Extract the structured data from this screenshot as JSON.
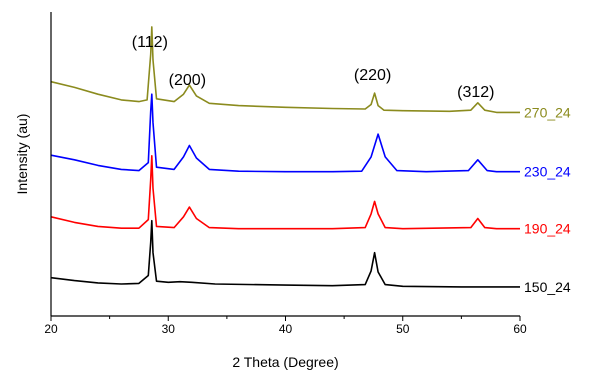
{
  "chart_data": {
    "type": "line",
    "xlabel": "2 Theta (Degree)",
    "ylabel": "Intensity (au)",
    "xlim": [
      20,
      60
    ],
    "xticks": [
      20,
      30,
      40,
      50,
      60
    ],
    "yticks_shown": false,
    "grid": false,
    "legend": "labels at right end of each trace",
    "stacked_offset": true,
    "peak_annotations": [
      {
        "label": "(112)",
        "x": 28.6
      },
      {
        "label": "(200)",
        "x": 31.8
      },
      {
        "label": "(220)",
        "x": 47.6
      },
      {
        "label": "(312)",
        "x": 56.4
      }
    ],
    "series": [
      {
        "name": "270_24",
        "color": "#8b8b1e",
        "baseline": 3.0,
        "x": [
          20,
          22,
          24,
          26,
          27.5,
          28.2,
          28.5,
          28.6,
          28.7,
          29.0,
          30.5,
          31.3,
          31.8,
          32.4,
          33.5,
          36,
          40,
          44,
          46.8,
          47.3,
          47.6,
          47.9,
          48.4,
          50,
          54,
          55.8,
          56.4,
          57.0,
          58,
          60
        ],
        "y": [
          3.62,
          3.52,
          3.4,
          3.3,
          3.27,
          3.3,
          4.1,
          4.58,
          4.0,
          3.32,
          3.27,
          3.4,
          3.56,
          3.37,
          3.24,
          3.2,
          3.17,
          3.15,
          3.14,
          3.22,
          3.42,
          3.2,
          3.12,
          3.11,
          3.1,
          3.12,
          3.25,
          3.12,
          3.08,
          3.08
        ]
      },
      {
        "name": "230_24",
        "color": "#0000ff",
        "baseline": 2.0,
        "x": [
          20,
          22,
          24,
          26,
          27.5,
          28.3,
          28.5,
          28.6,
          28.7,
          29.0,
          30.5,
          31.3,
          31.8,
          32.4,
          33.5,
          36,
          40,
          44,
          46.5,
          47.3,
          47.9,
          48.5,
          49.5,
          52,
          55.6,
          56.4,
          57.2,
          58,
          60
        ],
        "y": [
          2.33,
          2.25,
          2.15,
          2.08,
          2.06,
          2.2,
          3.1,
          3.4,
          2.9,
          2.12,
          2.08,
          2.3,
          2.5,
          2.28,
          2.08,
          2.05,
          2.04,
          2.04,
          2.05,
          2.3,
          2.7,
          2.3,
          2.06,
          2.04,
          2.06,
          2.25,
          2.06,
          2.04,
          2.04
        ]
      },
      {
        "name": "190_24",
        "color": "#ff0000",
        "baseline": 1.0,
        "x": [
          20,
          22,
          24,
          26,
          27.5,
          28.3,
          28.5,
          28.6,
          28.7,
          29.0,
          30.5,
          31.3,
          31.8,
          32.4,
          33.5,
          36,
          40,
          44,
          46.8,
          47.3,
          47.6,
          47.9,
          48.5,
          50,
          55.8,
          56.4,
          57.0,
          58,
          60
        ],
        "y": [
          1.25,
          1.15,
          1.08,
          1.05,
          1.05,
          1.2,
          1.9,
          2.32,
          1.75,
          1.08,
          1.06,
          1.25,
          1.42,
          1.22,
          1.06,
          1.04,
          1.04,
          1.04,
          1.06,
          1.3,
          1.52,
          1.3,
          1.06,
          1.04,
          1.06,
          1.22,
          1.06,
          1.04,
          1.04
        ]
      },
      {
        "name": "150_24",
        "color": "#000000",
        "baseline": 0.0,
        "x": [
          20,
          22,
          24,
          26,
          27.5,
          28.3,
          28.5,
          28.6,
          28.7,
          29.0,
          30,
          31,
          32,
          34,
          40,
          44,
          46.8,
          47.3,
          47.6,
          47.9,
          48.5,
          50,
          55,
          60
        ],
        "y": [
          0.18,
          0.13,
          0.09,
          0.07,
          0.08,
          0.22,
          0.8,
          1.18,
          0.62,
          0.12,
          0.1,
          0.11,
          0.1,
          0.07,
          0.05,
          0.04,
          0.06,
          0.3,
          0.62,
          0.28,
          0.06,
          0.03,
          0.02,
          0.02
        ]
      }
    ]
  }
}
